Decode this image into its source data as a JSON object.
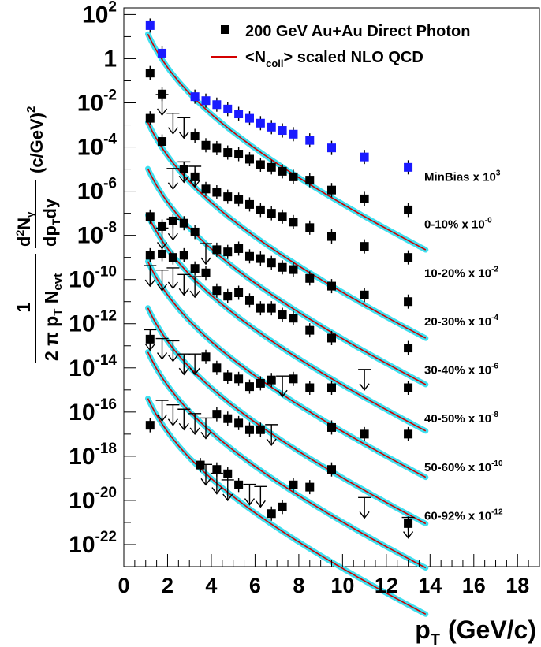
{
  "chart_data": {
    "type": "scatter",
    "title": "",
    "xlabel": "p",
    "xlabel_sub": "T",
    "xlabel_unit": "(GeV/c)",
    "ylabel": {
      "prefix": "1",
      "den_main": "2 π p",
      "den_sub1": "T",
      "den_mid": " N",
      "den_sub2": "evt",
      "num": "d",
      "num_sup": "2",
      "num_main": "N",
      "num_sub": "γ",
      "den2_a": "dp",
      "den2_sub": "T",
      "den2_b": "dy",
      "unit": "(c/GeV)",
      "unit_sup": "2"
    },
    "xlim": [
      0,
      19
    ],
    "ylim_log10": [
      -23,
      2.3
    ],
    "log_y": true,
    "grid": false,
    "legend_position": "top-right",
    "x_ticks": [
      "0",
      "2",
      "4",
      "6",
      "8",
      "10",
      "12",
      "14",
      "16",
      "18"
    ],
    "x_tick_values": [
      0,
      2,
      4,
      6,
      8,
      10,
      12,
      14,
      16,
      18
    ],
    "y_ticks": [
      {
        "base": "10",
        "exp": "2",
        "v": 2
      },
      {
        "base": "1",
        "exp": "",
        "v": 0
      },
      {
        "base": "10",
        "exp": "-2",
        "v": -2
      },
      {
        "base": "10",
        "exp": "-4",
        "v": -4
      },
      {
        "base": "10",
        "exp": "-6",
        "v": -6
      },
      {
        "base": "10",
        "exp": "-8",
        "v": -8
      },
      {
        "base": "10",
        "exp": "-10",
        "v": -10
      },
      {
        "base": "10",
        "exp": "-12",
        "v": -12
      },
      {
        "base": "10",
        "exp": "-14",
        "v": -14
      },
      {
        "base": "10",
        "exp": "-16",
        "v": -16
      },
      {
        "base": "10",
        "exp": "-18",
        "v": -18
      },
      {
        "base": "10",
        "exp": "-20",
        "v": -20
      },
      {
        "base": "10",
        "exp": "-22",
        "v": -22
      }
    ],
    "legend": [
      {
        "kind": "marker",
        "label": "200 GeV Au+Au Direct Photon",
        "color": "#000000"
      },
      {
        "kind": "line",
        "label_pre": "<N",
        "label_sub": "coll",
        "label_post": "> scaled NLO QCD",
        "color": "#d40000"
      }
    ],
    "colors": {
      "minbias_marker": "#1a1aff",
      "marker": "#000000",
      "nlo_line": "#d40000",
      "band": "#3fe0f0"
    },
    "series": [
      {
        "name": "MinBias",
        "label_pre": "MinBias x 10",
        "label_exp": "3",
        "label_v": -5.35,
        "color": "#1a1aff",
        "fit": {
          "A": 1.72,
          "B": 4.5,
          "C": 0.38
        },
        "points": [
          {
            "x": 1.2,
            "y": 1.5
          },
          {
            "x": 1.75,
            "y": 0.25
          },
          {
            "x": 3.25,
            "y": -1.72
          },
          {
            "x": 3.75,
            "y": -1.9
          },
          {
            "x": 4.25,
            "y": -2.08
          },
          {
            "x": 4.75,
            "y": -2.28
          },
          {
            "x": 5.25,
            "y": -2.5
          },
          {
            "x": 5.75,
            "y": -2.7
          },
          {
            "x": 6.25,
            "y": -2.92
          },
          {
            "x": 6.75,
            "y": -3.1
          },
          {
            "x": 7.25,
            "y": -3.25
          },
          {
            "x": 7.75,
            "y": -3.42
          },
          {
            "x": 8.5,
            "y": -3.7
          },
          {
            "x": 9.5,
            "y": -4.04
          },
          {
            "x": 11,
            "y": -4.45
          },
          {
            "x": 13,
            "y": -4.92
          }
        ],
        "limits": []
      },
      {
        "name": "0-10%",
        "label_pre": "0-10%   x 10",
        "label_exp": "-0",
        "label_v": -7.5,
        "color": "#000000",
        "fit": {
          "A": -2.28,
          "B": 4.5,
          "C": 0.38
        },
        "points": [
          {
            "x": 1.2,
            "y": -0.65
          },
          {
            "x": 1.75,
            "y": -1.6
          },
          {
            "x": 3.25,
            "y": -3.5
          },
          {
            "x": 3.75,
            "y": -3.92
          },
          {
            "x": 4.25,
            "y": -4.05
          },
          {
            "x": 4.75,
            "y": -4.25
          },
          {
            "x": 5.25,
            "y": -4.32
          },
          {
            "x": 5.75,
            "y": -4.55
          },
          {
            "x": 6.25,
            "y": -4.8
          },
          {
            "x": 6.75,
            "y": -4.92
          },
          {
            "x": 7.25,
            "y": -5.1
          },
          {
            "x": 7.75,
            "y": -5.35
          },
          {
            "x": 8.5,
            "y": -5.5
          },
          {
            "x": 9.5,
            "y": -5.95
          },
          {
            "x": 11,
            "y": -6.35
          },
          {
            "x": 13,
            "y": -6.85
          }
        ],
        "limits": [
          {
            "x": 1.75,
            "y": -2.55
          },
          {
            "x": 2.25,
            "y": -3.4
          },
          {
            "x": 2.75,
            "y": -3.6
          }
        ]
      },
      {
        "name": "10-20%",
        "label_pre": "10-20%  x 10",
        "label_exp": "-2",
        "label_v": -9.7,
        "color": "#000000",
        "fit": {
          "A": -4.38,
          "B": 4.5,
          "C": 0.38
        },
        "points": [
          {
            "x": 1.2,
            "y": -2.7
          },
          {
            "x": 1.75,
            "y": -3.75
          },
          {
            "x": 2.75,
            "y": -5.0
          },
          {
            "x": 3.25,
            "y": -5.35
          },
          {
            "x": 3.75,
            "y": -5.9
          },
          {
            "x": 4.25,
            "y": -6.05
          },
          {
            "x": 4.75,
            "y": -6.25
          },
          {
            "x": 5.25,
            "y": -6.38
          },
          {
            "x": 5.75,
            "y": -6.6
          },
          {
            "x": 6.25,
            "y": -6.85
          },
          {
            "x": 6.75,
            "y": -7.0
          },
          {
            "x": 7.25,
            "y": -7.15
          },
          {
            "x": 7.75,
            "y": -7.4
          },
          {
            "x": 8.5,
            "y": -7.65
          },
          {
            "x": 9.5,
            "y": -8.05
          },
          {
            "x": 11,
            "y": -8.5
          },
          {
            "x": 13,
            "y": -9.0
          }
        ],
        "limits": [
          {
            "x": 2.25,
            "y": -5.9
          },
          {
            "x": 2.75,
            "y": -5.6
          },
          {
            "x": 3.25,
            "y": -5.8
          }
        ]
      },
      {
        "name": "20-30%",
        "label_pre": "20-30%  x 10",
        "label_exp": "-4",
        "label_v": -11.9,
        "color": "#000000",
        "fit": {
          "A": -6.48,
          "B": 4.5,
          "C": 0.38
        },
        "points": [
          {
            "x": 1.2,
            "y": -7.15
          },
          {
            "x": 1.75,
            "y": -7.6
          },
          {
            "x": 2.25,
            "y": -7.35
          },
          {
            "x": 2.75,
            "y": -7.45
          },
          {
            "x": 3.25,
            "y": -7.85
          },
          {
            "x": 4.25,
            "y": -8.65
          },
          {
            "x": 4.75,
            "y": -8.75
          },
          {
            "x": 5.25,
            "y": -8.6
          },
          {
            "x": 5.75,
            "y": -8.95
          },
          {
            "x": 6.25,
            "y": -9.05
          },
          {
            "x": 6.75,
            "y": -9.25
          },
          {
            "x": 7.25,
            "y": -9.45
          },
          {
            "x": 7.75,
            "y": -9.55
          },
          {
            "x": 8.5,
            "y": -9.95
          },
          {
            "x": 9.5,
            "y": -10.3
          },
          {
            "x": 11,
            "y": -10.7
          },
          {
            "x": 13,
            "y": -11.0
          }
        ],
        "limits": [
          {
            "x": 1.75,
            "y": -8.6
          },
          {
            "x": 2.25,
            "y": -8.2
          },
          {
            "x": 3.75,
            "y": -9.3
          }
        ]
      },
      {
        "name": "30-40%",
        "label_pre": "30-40%  x 10",
        "label_exp": "-6",
        "label_v": -14.1,
        "color": "#000000",
        "fit": {
          "A": -8.58,
          "B": 4.5,
          "C": 0.38
        },
        "points": [
          {
            "x": 1.2,
            "y": -8.9
          },
          {
            "x": 1.75,
            "y": -8.85
          },
          {
            "x": 2.25,
            "y": -9.0
          },
          {
            "x": 2.75,
            "y": -8.9
          },
          {
            "x": 3.25,
            "y": -9.5
          },
          {
            "x": 3.75,
            "y": -9.7
          },
          {
            "x": 4.25,
            "y": -10.5
          },
          {
            "x": 4.75,
            "y": -10.75
          },
          {
            "x": 5.25,
            "y": -10.6
          },
          {
            "x": 5.75,
            "y": -10.95
          },
          {
            "x": 6.25,
            "y": -11.3
          },
          {
            "x": 6.75,
            "y": -11.3
          },
          {
            "x": 7.25,
            "y": -11.6
          },
          {
            "x": 7.75,
            "y": -11.75
          },
          {
            "x": 8.5,
            "y": -12.3
          },
          {
            "x": 9.5,
            "y": -12.65
          },
          {
            "x": 13,
            "y": -13.1
          }
        ],
        "limits": [
          {
            "x": 1.2,
            "y": -10.3
          },
          {
            "x": 1.75,
            "y": -10.5
          },
          {
            "x": 2.25,
            "y": -10.4
          },
          {
            "x": 2.75,
            "y": -10.7
          },
          {
            "x": 3.25,
            "y": -10.8
          }
        ]
      },
      {
        "name": "40-50%",
        "label_pre": "40-50%  x 10",
        "label_exp": "-8",
        "label_v": -16.3,
        "color": "#000000",
        "fit": {
          "A": -10.68,
          "B": 4.5,
          "C": 0.38
        },
        "points": [
          {
            "x": 1.2,
            "y": -12.7
          },
          {
            "x": 3.75,
            "y": -13.5
          },
          {
            "x": 4.25,
            "y": -14.0
          },
          {
            "x": 4.75,
            "y": -14.4
          },
          {
            "x": 5.25,
            "y": -14.5
          },
          {
            "x": 5.75,
            "y": -14.85
          },
          {
            "x": 6.25,
            "y": -14.7
          },
          {
            "x": 6.75,
            "y": -14.55
          },
          {
            "x": 7.75,
            "y": -14.5
          },
          {
            "x": 8.5,
            "y": -14.9
          },
          {
            "x": 9.5,
            "y": -14.9
          },
          {
            "x": 13,
            "y": -14.9
          }
        ],
        "limits": [
          {
            "x": 1.2,
            "y": -13.2
          },
          {
            "x": 1.75,
            "y": -13.6
          },
          {
            "x": 2.25,
            "y": -13.7
          },
          {
            "x": 2.75,
            "y": -14.3
          },
          {
            "x": 3.25,
            "y": -14.3
          },
          {
            "x": 7.25,
            "y": -15.3
          },
          {
            "x": 11,
            "y": -15.0
          }
        ]
      },
      {
        "name": "50-60%",
        "label_pre": "50-60%  x 10",
        "label_exp": "-10",
        "label_v": -18.5,
        "color": "#000000",
        "fit": {
          "A": -12.68,
          "B": 4.5,
          "C": 0.38
        },
        "points": [
          {
            "x": 1.2,
            "y": -16.6
          },
          {
            "x": 4.25,
            "y": -16.1
          },
          {
            "x": 4.75,
            "y": -16.3
          },
          {
            "x": 5.25,
            "y": -16.5
          },
          {
            "x": 5.75,
            "y": -16.8
          },
          {
            "x": 6.25,
            "y": -16.8
          },
          {
            "x": 9.5,
            "y": -16.7
          },
          {
            "x": 11,
            "y": -17.0
          },
          {
            "x": 13,
            "y": -17.0
          }
        ],
        "limits": [
          {
            "x": 1.75,
            "y": -16.4
          },
          {
            "x": 2.25,
            "y": -16.6
          },
          {
            "x": 2.75,
            "y": -16.8
          },
          {
            "x": 3.25,
            "y": -17.0
          },
          {
            "x": 3.75,
            "y": -17.2
          },
          {
            "x": 6.75,
            "y": -17.5
          }
        ]
      },
      {
        "name": "60-92%",
        "label_pre": "60-92%  x 10",
        "label_exp": "-12",
        "label_v": -20.7,
        "color": "#000000",
        "fit": {
          "A": -14.78,
          "B": 4.5,
          "C": 0.38
        },
        "points": [
          {
            "x": 3.5,
            "y": -18.4
          },
          {
            "x": 4.25,
            "y": -18.6
          },
          {
            "x": 4.75,
            "y": -18.8
          },
          {
            "x": 5.25,
            "y": -19.3
          },
          {
            "x": 6.75,
            "y": -20.6
          },
          {
            "x": 7.25,
            "y": -20.3
          },
          {
            "x": 7.75,
            "y": -19.3
          },
          {
            "x": 8.5,
            "y": -19.4
          },
          {
            "x": 9.5,
            "y": -18.6
          },
          {
            "x": 13,
            "y": -21.05
          }
        ],
        "limits": [
          {
            "x": 3.75,
            "y": -19.3
          },
          {
            "x": 4.25,
            "y": -19.7
          },
          {
            "x": 4.75,
            "y": -20.0
          },
          {
            "x": 5.75,
            "y": -20.2
          },
          {
            "x": 6.25,
            "y": -20.3
          },
          {
            "x": 11,
            "y": -20.8
          },
          {
            "x": 13,
            "y": -21.7
          }
        ]
      }
    ]
  }
}
